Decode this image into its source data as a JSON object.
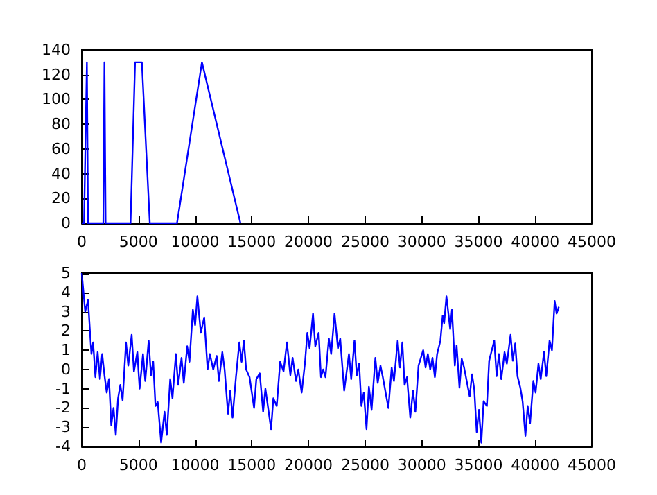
{
  "chart_data": [
    {
      "type": "line",
      "x": [
        0,
        200,
        450,
        550,
        1900,
        2000,
        2100,
        4300,
        4700,
        5300,
        6000,
        8400,
        10600,
        14000
      ],
      "color": "#0000ff",
      "values": [
        0,
        0,
        130,
        0,
        0,
        130,
        0,
        0,
        130,
        130,
        0,
        0,
        130,
        0
      ],
      "xlim": [
        0,
        45000
      ],
      "xticks": [
        0,
        5000,
        10000,
        15000,
        20000,
        25000,
        30000,
        35000,
        40000,
        45000
      ],
      "ylim": [
        0,
        140
      ],
      "yticks": [
        0,
        20,
        40,
        60,
        80,
        100,
        120,
        140
      ],
      "grid": false
    },
    {
      "type": "line",
      "color": "#0000ff",
      "x": [
        0,
        300,
        550,
        750,
        850,
        1000,
        1200,
        1400,
        1600,
        1800,
        2000,
        2200,
        2400,
        2600,
        2800,
        3000,
        3200,
        3400,
        3600,
        3900,
        4100,
        4400,
        4600,
        4900,
        5100,
        5400,
        5600,
        5900,
        6100,
        6300,
        6500,
        6700,
        7000,
        7300,
        7500,
        7800,
        8000,
        8300,
        8500,
        8800,
        9000,
        9300,
        9500,
        9800,
        10000,
        10200,
        10500,
        10800,
        11100,
        11300,
        11600,
        11900,
        12100,
        12400,
        12600,
        12900,
        13100,
        13300,
        13600,
        13900,
        14100,
        14300,
        14500,
        14800,
        15200,
        15400,
        15700,
        16000,
        16200,
        16700,
        16900,
        17200,
        17500,
        17800,
        18100,
        18400,
        18600,
        18900,
        19100,
        19400,
        19700,
        19900,
        20100,
        20400,
        20600,
        20900,
        21100,
        21300,
        21500,
        21800,
        22000,
        22300,
        22600,
        22800,
        23150,
        23570,
        23770,
        24060,
        24260,
        24470,
        24670,
        24880,
        25120,
        25330,
        25570,
        25900,
        26110,
        26350,
        26560,
        27050,
        27340,
        27540,
        27870,
        28070,
        28280,
        28480,
        28690,
        28980,
        29220,
        29430,
        29710,
        30120,
        30330,
        30530,
        30740,
        30940,
        31150,
        31350,
        31640,
        31840,
        31970,
        32170,
        32500,
        32660,
        32910,
        33070,
        33320,
        33520,
        33730,
        34220,
        34430,
        34630,
        34840,
        35040,
        35250,
        35450,
        35740,
        35940,
        36390,
        36600,
        36800,
        37010,
        37300,
        37500,
        37830,
        38030,
        38240,
        38440,
        38690,
        38890,
        39140,
        39340,
        39550,
        39840,
        40040,
        40290,
        40490,
        40780,
        40980,
        41270,
        41480,
        41720,
        41890,
        42090
      ],
      "values": [
        5.0,
        3.0,
        3.6,
        1.7,
        0.8,
        1.4,
        -0.4,
        0.9,
        -0.5,
        0.8,
        -0.3,
        -1.2,
        -0.5,
        -2.9,
        -2.0,
        -3.4,
        -1.5,
        -0.8,
        -1.6,
        1.4,
        0.2,
        1.8,
        -0.1,
        0.9,
        -1.0,
        0.8,
        -0.6,
        1.5,
        -0.3,
        0.4,
        -1.9,
        -1.7,
        -3.8,
        -2.2,
        -3.4,
        -0.5,
        -1.5,
        0.8,
        -0.8,
        0.6,
        -0.7,
        1.2,
        0.4,
        3.1,
        2.3,
        3.8,
        1.9,
        2.7,
        0.0,
        0.8,
        0.0,
        0.7,
        -0.6,
        0.9,
        0.0,
        -2.3,
        -1.1,
        -2.5,
        -0.4,
        1.4,
        0.4,
        1.5,
        0.0,
        -0.4,
        -2.0,
        -0.5,
        -0.2,
        -2.2,
        -1.0,
        -3.1,
        -1.5,
        -1.9,
        0.4,
        -0.1,
        1.4,
        -0.3,
        0.6,
        -0.6,
        0.0,
        -1.2,
        0.4,
        1.9,
        1.1,
        2.9,
        1.2,
        1.9,
        -0.4,
        0.0,
        -0.4,
        1.6,
        0.8,
        2.9,
        1.1,
        1.6,
        -1.1,
        0.8,
        -0.5,
        1.5,
        -0.3,
        0.3,
        -1.9,
        -1.2,
        -3.1,
        -0.9,
        -2.1,
        0.6,
        -0.7,
        0.2,
        -0.4,
        -2.0,
        0.1,
        -0.6,
        1.5,
        0.1,
        1.4,
        -0.8,
        -0.4,
        -2.5,
        -1.1,
        -2.2,
        0.2,
        1.0,
        0.1,
        0.8,
        0.0,
        0.6,
        -0.4,
        0.8,
        1.5,
        2.8,
        2.4,
        3.8,
        2.1,
        3.1,
        0.2,
        1.25,
        -0.95,
        0.55,
        0.1,
        -1.4,
        -0.25,
        -1.05,
        -3.25,
        -2.1,
        -3.8,
        -1.65,
        -1.9,
        0.45,
        1.5,
        -0.35,
        0.8,
        -0.5,
        0.9,
        0.3,
        1.8,
        0.45,
        1.35,
        -0.35,
        -0.95,
        -1.65,
        -3.45,
        -1.9,
        -2.8,
        -0.6,
        -1.2,
        0.3,
        -0.5,
        0.9,
        -0.35,
        1.5,
        1.0,
        3.55,
        2.9,
        3.25
      ],
      "xlim": [
        0,
        45000
      ],
      "xticks": [
        0,
        5000,
        10000,
        15000,
        20000,
        25000,
        30000,
        35000,
        40000,
        45000
      ],
      "ylim": [
        -4,
        5
      ],
      "yticks": [
        -4,
        -3,
        -2,
        -1,
        0,
        1,
        2,
        3,
        4,
        5
      ],
      "grid": false
    }
  ]
}
